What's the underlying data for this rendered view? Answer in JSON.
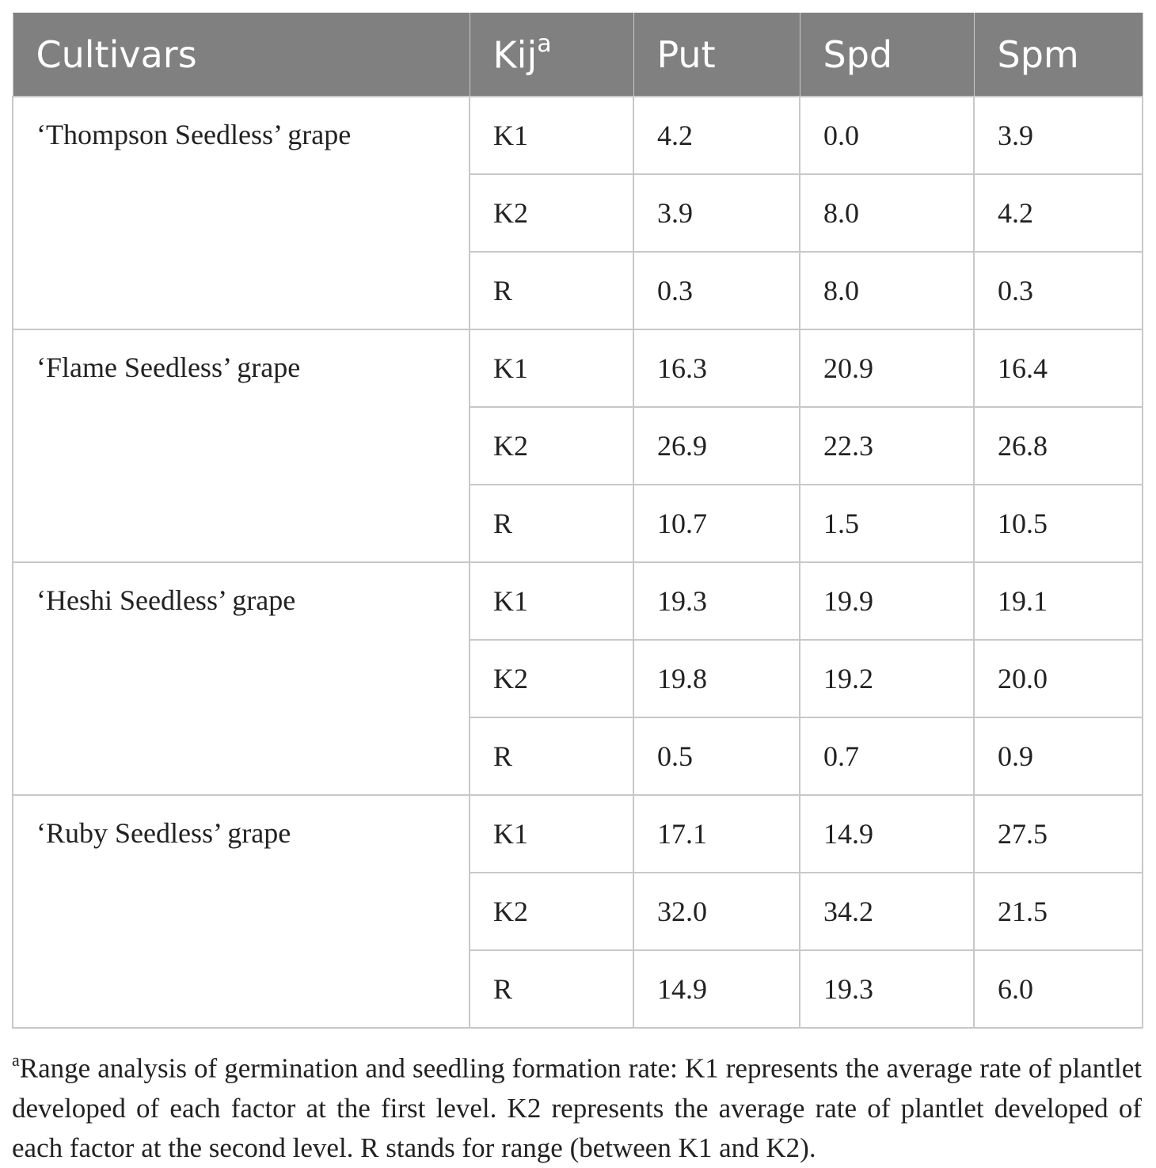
{
  "table": {
    "headers": {
      "cultivars": "Cultivars",
      "kij": "Kij",
      "kij_sup": "a",
      "put": "Put",
      "spd": "Spd",
      "spm": "Spm"
    },
    "groups": [
      {
        "cultivar": "‘Thompson Seedless’ grape",
        "rows": [
          {
            "kij": "K1",
            "put": "4.2",
            "spd": "0.0",
            "spm": "3.9"
          },
          {
            "kij": "K2",
            "put": "3.9",
            "spd": "8.0",
            "spm": "4.2"
          },
          {
            "kij": "R",
            "put": "0.3",
            "spd": "8.0",
            "spm": "0.3"
          }
        ]
      },
      {
        "cultivar": "‘Flame Seedless’ grape",
        "rows": [
          {
            "kij": "K1",
            "put": "16.3",
            "spd": "20.9",
            "spm": "16.4"
          },
          {
            "kij": "K2",
            "put": "26.9",
            "spd": "22.3",
            "spm": "26.8"
          },
          {
            "kij": "R",
            "put": "10.7",
            "spd": "1.5",
            "spm": "10.5"
          }
        ]
      },
      {
        "cultivar": "‘Heshi Seedless’ grape",
        "rows": [
          {
            "kij": "K1",
            "put": "19.3",
            "spd": "19.9",
            "spm": "19.1"
          },
          {
            "kij": "K2",
            "put": "19.8",
            "spd": "19.2",
            "spm": "20.0"
          },
          {
            "kij": "R",
            "put": "0.5",
            "spd": "0.7",
            "spm": "0.9"
          }
        ]
      },
      {
        "cultivar": "‘Ruby Seedless’ grape",
        "rows": [
          {
            "kij": "K1",
            "put": "17.1",
            "spd": "14.9",
            "spm": "27.5"
          },
          {
            "kij": "K2",
            "put": "32.0",
            "spd": "34.2",
            "spm": "21.5"
          },
          {
            "kij": "R",
            "put": "14.9",
            "spd": "19.3",
            "spm": "6.0"
          }
        ]
      }
    ]
  },
  "footnote": {
    "marker": "a",
    "text": "Range analysis of germination and seedling formation rate: K1 represents the average rate of plantlet developed of each factor at the first level. K2 represents the average rate of plantlet developed of each factor at the second level. R stands for range (between K1 and K2)."
  },
  "colors": {
    "header_bg": "#808080",
    "header_text": "#ffffff",
    "grid": "#c8c8c8"
  }
}
